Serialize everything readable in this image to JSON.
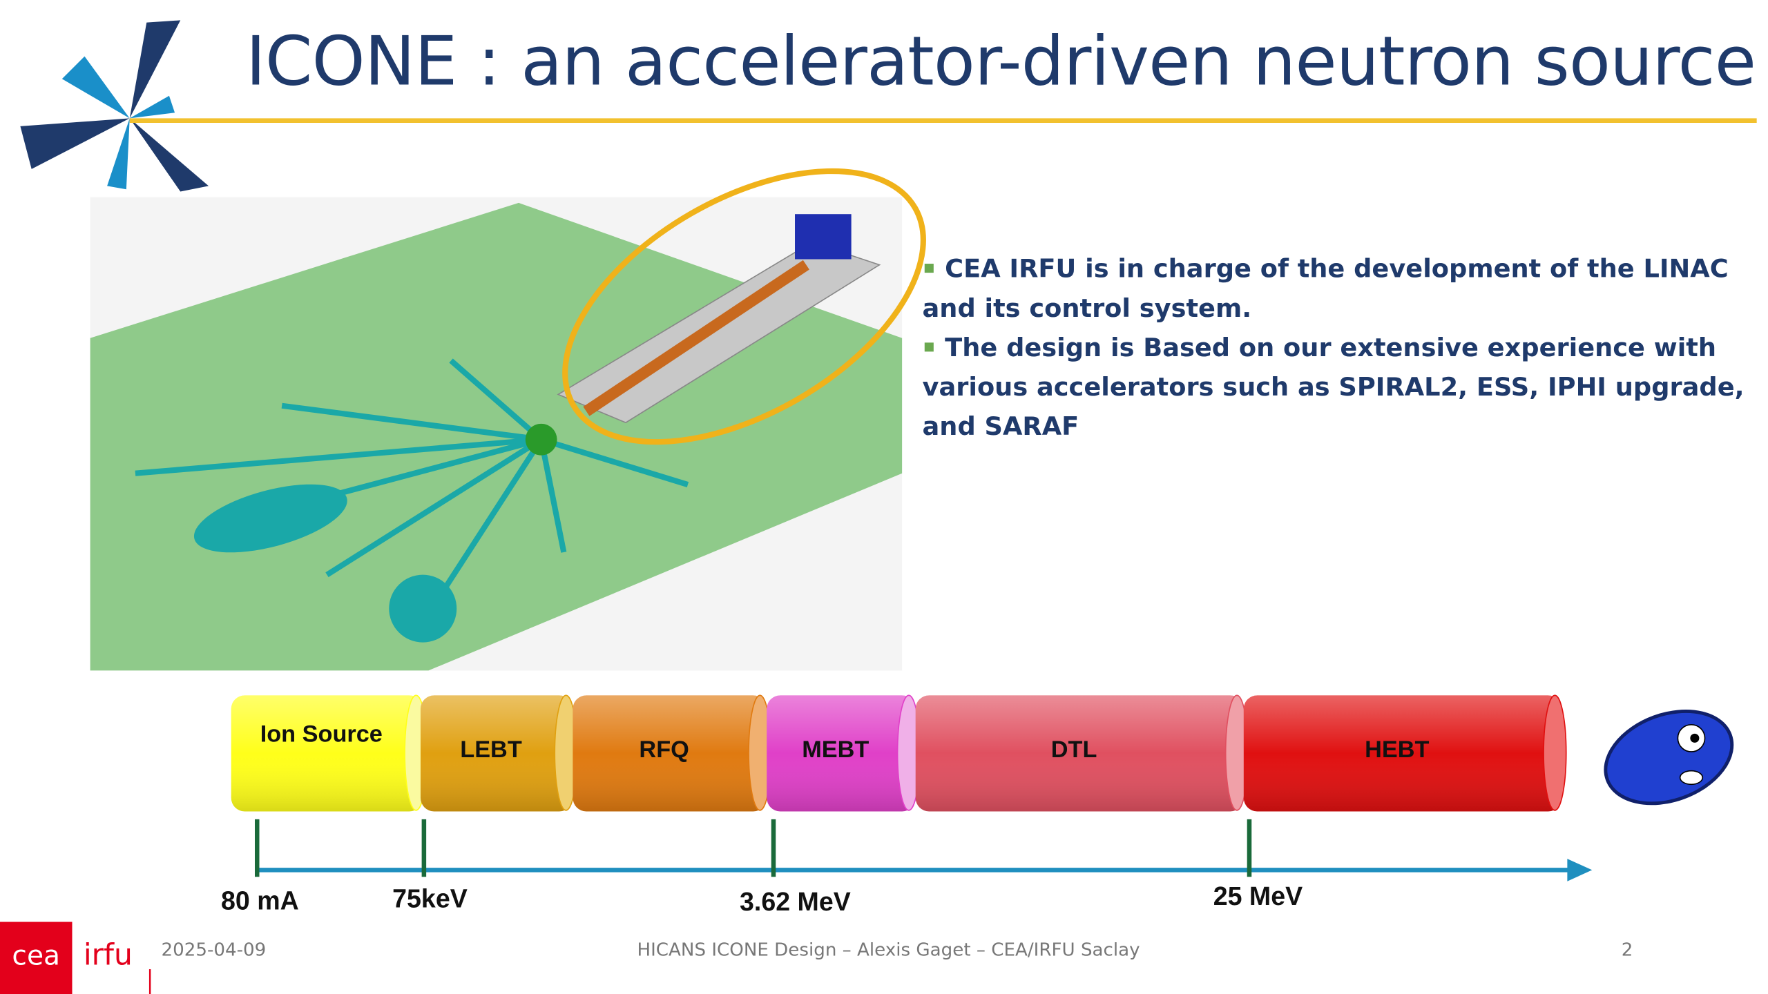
{
  "header": {
    "title": "ICONE : an accelerator-driven neutron source"
  },
  "bullets": [
    "CEA IRFU is in charge of the development of the LINAC and its control system.",
    "The design is Based on our extensive experience with various accelerators such as SPIRAL2, ESS, IPHI upgrade, and SARAF"
  ],
  "linac": {
    "sections": [
      "Ion Source",
      "LEBT",
      "RFQ",
      "MEBT",
      "DTL",
      "HEBT"
    ],
    "markers": [
      "80 mA",
      "75keV",
      "3.62 MeV",
      "25 MeV"
    ]
  },
  "footer": {
    "logo_mark": "cea",
    "logo_text": "irfu",
    "date": "2025-04-09",
    "center": "HICANS ICONE Design – Alexis Gaget – CEA/IRFU Saclay",
    "page": "2"
  }
}
